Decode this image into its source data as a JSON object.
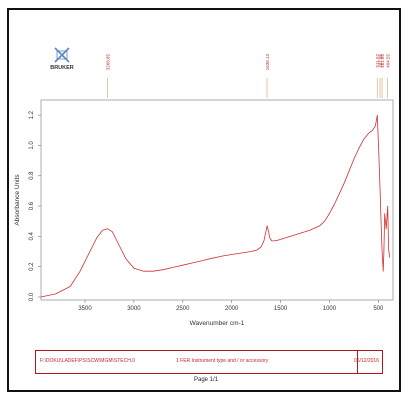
{
  "logo": {
    "text": "BRUKER"
  },
  "chart_data": {
    "type": "line",
    "xlabel": "Wavenumber cm-1",
    "ylabel": "Absorbance Units",
    "xlim": [
      3950,
      350
    ],
    "ylim": [
      -0.02,
      1.3
    ],
    "x_ticks": [
      3500,
      3000,
      2500,
      2000,
      1500,
      1000,
      500
    ],
    "y_ticks": [
      0.0,
      0.2,
      0.4,
      0.6,
      0.8,
      1.0,
      1.2
    ],
    "x_tick_labels": [
      "3500",
      "3000",
      "2500",
      "2000",
      "1500",
      "1000",
      "500"
    ],
    "y_tick_labels": [
      "0.0",
      "0.2",
      "0.4",
      "0.6",
      "0.8",
      "1.0",
      "1.2"
    ],
    "grid": false,
    "series": [
      {
        "color": "#d03030",
        "x": [
          3950,
          3800,
          3650,
          3550,
          3450,
          3380,
          3320,
          3268,
          3220,
          3150,
          3080,
          3000,
          2900,
          2800,
          2700,
          2600,
          2500,
          2400,
          2300,
          2200,
          2100,
          2000,
          1900,
          1800,
          1740,
          1700,
          1670,
          1650,
          1638,
          1625,
          1610,
          1590,
          1560,
          1530,
          1500,
          1450,
          1400,
          1300,
          1200,
          1100,
          1050,
          1000,
          950,
          900,
          850,
          800,
          750,
          700,
          650,
          600,
          560,
          530,
          511,
          495,
          482,
          470,
          461,
          450,
          443,
          435,
          420,
          404,
          395,
          385
        ],
        "y": [
          0.0,
          0.02,
          0.07,
          0.17,
          0.3,
          0.39,
          0.44,
          0.45,
          0.43,
          0.34,
          0.25,
          0.19,
          0.17,
          0.17,
          0.18,
          0.195,
          0.21,
          0.225,
          0.24,
          0.255,
          0.27,
          0.28,
          0.29,
          0.3,
          0.31,
          0.33,
          0.37,
          0.43,
          0.47,
          0.44,
          0.39,
          0.37,
          0.37,
          0.375,
          0.38,
          0.39,
          0.4,
          0.42,
          0.44,
          0.47,
          0.5,
          0.55,
          0.61,
          0.68,
          0.75,
          0.83,
          0.91,
          0.98,
          1.04,
          1.08,
          1.1,
          1.13,
          1.2,
          0.95,
          0.7,
          0.45,
          0.3,
          0.17,
          0.3,
          0.55,
          0.45,
          0.6,
          0.32,
          0.26
        ]
      }
    ],
    "peak_labels": [
      {
        "x": 3268.85,
        "label": "3268.85",
        "color": "#d6b07a"
      },
      {
        "x": 1638.13,
        "label": "1638.13",
        "color": "#d6b07a"
      },
      {
        "x": 511.52,
        "label": "511.52",
        "color": "#d6b07a"
      },
      {
        "x": 482.85,
        "label": "482.85",
        "color": "#d6b07a"
      },
      {
        "x": 461.85,
        "label": "461.85",
        "color": "#d6b07a"
      },
      {
        "x": 404.55,
        "label": "404.55",
        "color": "#d6b07a"
      }
    ]
  },
  "footer": {
    "path": "F:\\DOKU\\LADEF\\PS\\SCW\\MGM\\STECH.0",
    "desc": "1 FER   Instrument type and / or accessory",
    "date": "06/12/2016"
  },
  "page": {
    "number": "Page 1/1"
  }
}
